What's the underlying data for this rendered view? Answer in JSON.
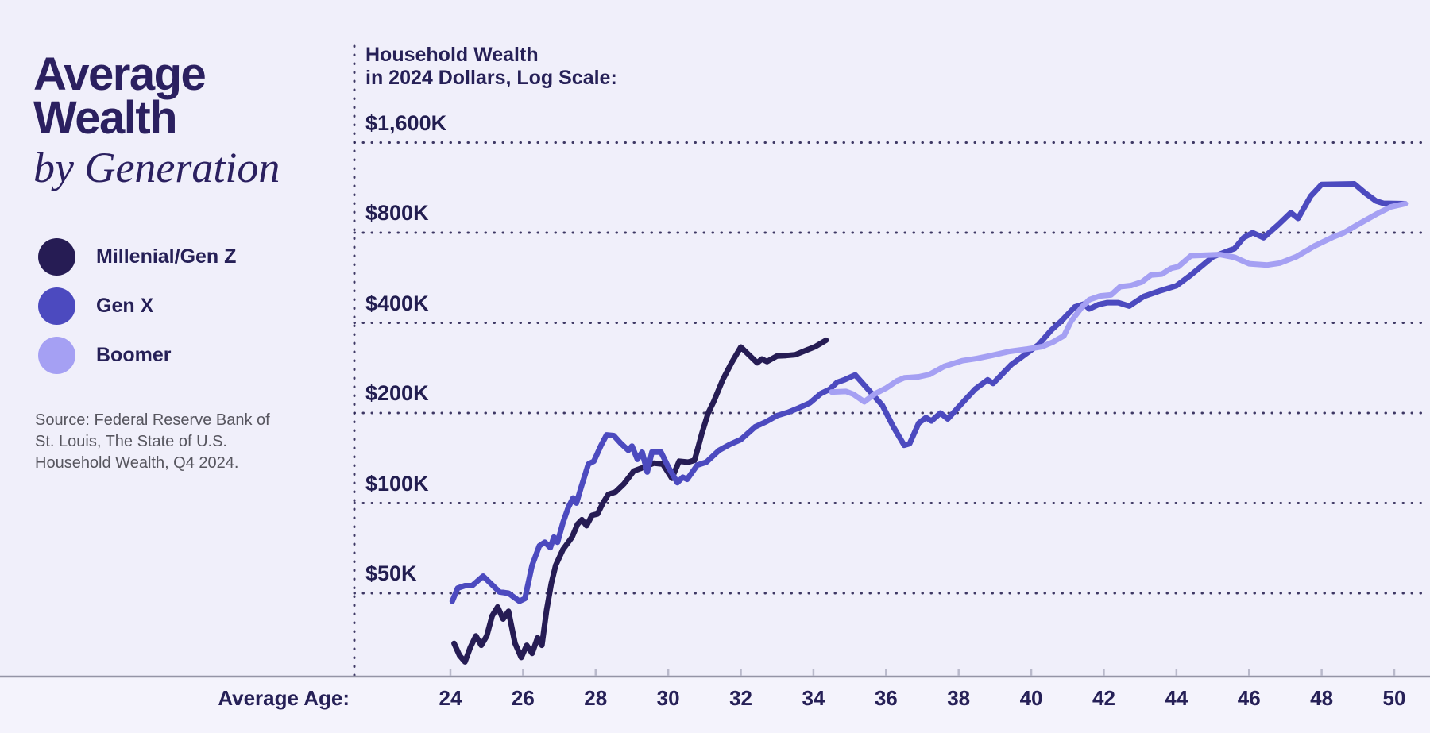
{
  "title": {
    "line1": "Average",
    "line2": "Wealth",
    "line3": "by Generation"
  },
  "legend": [
    {
      "label": "Millenial/Gen Z",
      "color": "#261c54"
    },
    {
      "label": "Gen X",
      "color": "#4c4abf"
    },
    {
      "label": "Boomer",
      "color": "#a5a0f3"
    }
  ],
  "source": {
    "line1": "Source: Federal Reserve Bank of",
    "line2": "St. Louis, The State of U.S.",
    "line3": "Household Wealth, Q4 2024."
  },
  "chart_header": {
    "line1": "Household Wealth",
    "line2": "in 2024 Dollars, Log Scale:"
  },
  "x_axis": {
    "label": "Average Age:",
    "ticks": [
      24,
      26,
      28,
      30,
      32,
      34,
      36,
      38,
      40,
      42,
      44,
      46,
      48,
      50
    ]
  },
  "y_axis": {
    "ticks": [
      {
        "label": "$1,600K",
        "value": 1600
      },
      {
        "label": "$800K",
        "value": 800
      },
      {
        "label": "$400K",
        "value": 400
      },
      {
        "label": "$200K",
        "value": 200
      },
      {
        "label": "$100K",
        "value": 100
      },
      {
        "label": "$50K",
        "value": 50
      }
    ]
  },
  "colors": {
    "background": "#f0effa",
    "text_dark": "#262057",
    "grid_dots": "#2b2554",
    "axis_line": "#9494a6",
    "tick_mark": "#b9b9cb",
    "source_text": "#57565f"
  },
  "chart_data": {
    "type": "line",
    "title": "Average Wealth by Generation",
    "xlabel": "Average Age:",
    "ylabel": "Household Wealth in 2024 Dollars, Log Scale",
    "x_range": [
      24,
      50.5
    ],
    "y_scale": "log",
    "y_tick_values_k": [
      50,
      100,
      200,
      400,
      800,
      1600
    ],
    "grid": "dotted-horizontal",
    "legend_position": "left",
    "units": "thousands of 2024 dollars",
    "series": [
      {
        "name": "Millenial/Gen Z",
        "color": "#261c54",
        "points": [
          [
            24.1,
            34
          ],
          [
            24.25,
            31
          ],
          [
            24.4,
            29.5
          ],
          [
            24.55,
            33
          ],
          [
            24.7,
            36
          ],
          [
            24.85,
            33.5
          ],
          [
            25.0,
            36
          ],
          [
            25.15,
            42
          ],
          [
            25.3,
            45
          ],
          [
            25.45,
            41
          ],
          [
            25.6,
            43.5
          ],
          [
            25.78,
            34
          ],
          [
            25.95,
            30.5
          ],
          [
            26.1,
            33.5
          ],
          [
            26.25,
            31.5
          ],
          [
            26.4,
            35.5
          ],
          [
            26.52,
            33.5
          ],
          [
            26.65,
            44
          ],
          [
            26.78,
            54
          ],
          [
            26.9,
            62
          ],
          [
            27.1,
            70
          ],
          [
            27.35,
            77
          ],
          [
            27.5,
            85
          ],
          [
            27.62,
            88
          ],
          [
            27.75,
            84
          ],
          [
            27.9,
            91
          ],
          [
            28.05,
            92
          ],
          [
            28.2,
            100
          ],
          [
            28.35,
            107
          ],
          [
            28.55,
            109
          ],
          [
            28.78,
            116
          ],
          [
            29.05,
            128
          ],
          [
            29.35,
            132
          ],
          [
            29.6,
            136
          ],
          [
            29.85,
            135
          ],
          [
            30.1,
            121
          ],
          [
            30.3,
            138
          ],
          [
            30.55,
            137
          ],
          [
            30.72,
            139
          ],
          [
            30.82,
            153
          ],
          [
            30.92,
            170
          ],
          [
            31.1,
            200
          ],
          [
            31.25,
            218
          ],
          [
            31.5,
            258
          ],
          [
            31.75,
            295
          ],
          [
            32.0,
            332
          ],
          [
            32.45,
            294
          ],
          [
            32.58,
            303
          ],
          [
            32.72,
            297
          ],
          [
            33.0,
            310
          ],
          [
            33.25,
            311
          ],
          [
            33.5,
            313
          ],
          [
            33.75,
            322
          ],
          [
            34.05,
            333
          ],
          [
            34.35,
            350
          ]
        ]
      },
      {
        "name": "Gen X",
        "color": "#4c4abf",
        "points": [
          [
            24.05,
            47
          ],
          [
            24.2,
            52
          ],
          [
            24.4,
            53
          ],
          [
            24.6,
            53
          ],
          [
            24.9,
            57
          ],
          [
            25.1,
            54
          ],
          [
            25.35,
            50.5
          ],
          [
            25.6,
            50
          ],
          [
            25.9,
            47
          ],
          [
            26.05,
            48
          ],
          [
            26.25,
            62
          ],
          [
            26.45,
            72
          ],
          [
            26.6,
            74
          ],
          [
            26.75,
            71
          ],
          [
            26.85,
            77
          ],
          [
            26.95,
            74
          ],
          [
            27.1,
            86
          ],
          [
            27.25,
            97
          ],
          [
            27.38,
            104
          ],
          [
            27.47,
            100
          ],
          [
            27.6,
            113
          ],
          [
            27.8,
            135
          ],
          [
            27.95,
            138
          ],
          [
            28.15,
            156
          ],
          [
            28.3,
            169
          ],
          [
            28.5,
            168
          ],
          [
            28.7,
            158
          ],
          [
            28.9,
            150
          ],
          [
            29.0,
            155
          ],
          [
            29.15,
            140
          ],
          [
            29.28,
            148
          ],
          [
            29.42,
            127
          ],
          [
            29.55,
            148
          ],
          [
            29.8,
            148
          ],
          [
            30.0,
            132
          ],
          [
            30.25,
            117
          ],
          [
            30.4,
            122
          ],
          [
            30.52,
            120
          ],
          [
            30.8,
            134
          ],
          [
            31.05,
            137
          ],
          [
            31.4,
            150
          ],
          [
            31.7,
            157
          ],
          [
            32.0,
            163
          ],
          [
            32.4,
            180
          ],
          [
            32.7,
            187
          ],
          [
            33.0,
            196
          ],
          [
            33.3,
            201
          ],
          [
            33.6,
            208
          ],
          [
            33.9,
            216
          ],
          [
            34.2,
            232
          ],
          [
            34.45,
            240
          ],
          [
            34.65,
            253
          ],
          [
            34.85,
            258
          ],
          [
            35.15,
            268
          ],
          [
            35.5,
            240
          ],
          [
            35.9,
            212
          ],
          [
            36.2,
            180
          ],
          [
            36.5,
            156
          ],
          [
            36.65,
            158
          ],
          [
            36.9,
            185
          ],
          [
            37.1,
            193
          ],
          [
            37.25,
            188
          ],
          [
            37.5,
            200
          ],
          [
            37.7,
            191
          ],
          [
            38.1,
            216
          ],
          [
            38.45,
            240
          ],
          [
            38.8,
            258
          ],
          [
            38.95,
            251
          ],
          [
            39.45,
            290
          ],
          [
            39.9,
            318
          ],
          [
            40.2,
            338
          ],
          [
            40.55,
            378
          ],
          [
            40.85,
            408
          ],
          [
            41.2,
            452
          ],
          [
            41.45,
            462
          ],
          [
            41.6,
            445
          ],
          [
            41.85,
            460
          ],
          [
            42.1,
            467
          ],
          [
            42.4,
            467
          ],
          [
            42.7,
            455
          ],
          [
            43.1,
            490
          ],
          [
            43.55,
            512
          ],
          [
            44.0,
            532
          ],
          [
            44.4,
            578
          ],
          [
            45.0,
            664
          ],
          [
            45.35,
            690
          ],
          [
            45.6,
            708
          ],
          [
            45.85,
            770
          ],
          [
            46.1,
            800
          ],
          [
            46.4,
            770
          ],
          [
            46.8,
            850
          ],
          [
            47.15,
            933
          ],
          [
            47.35,
            893
          ],
          [
            47.7,
            1060
          ],
          [
            48.0,
            1160
          ],
          [
            48.9,
            1165
          ],
          [
            49.2,
            1085
          ],
          [
            49.5,
            1020
          ],
          [
            49.7,
            1003
          ],
          [
            50.3,
            1000
          ]
        ]
      },
      {
        "name": "Boomer",
        "color": "#a5a0f3",
        "points": [
          [
            34.5,
            235
          ],
          [
            34.9,
            236
          ],
          [
            35.1,
            231
          ],
          [
            35.4,
            218
          ],
          [
            35.7,
            232
          ],
          [
            36.0,
            242
          ],
          [
            36.3,
            256
          ],
          [
            36.5,
            262
          ],
          [
            36.9,
            264
          ],
          [
            37.2,
            269
          ],
          [
            37.6,
            286
          ],
          [
            38.1,
            299
          ],
          [
            38.5,
            304
          ],
          [
            38.9,
            311
          ],
          [
            39.4,
            321
          ],
          [
            39.9,
            327
          ],
          [
            40.3,
            333
          ],
          [
            40.6,
            345
          ],
          [
            40.9,
            362
          ],
          [
            41.1,
            405
          ],
          [
            41.4,
            452
          ],
          [
            41.6,
            478
          ],
          [
            41.9,
            492
          ],
          [
            42.2,
            496
          ],
          [
            42.45,
            528
          ],
          [
            42.75,
            533
          ],
          [
            43.05,
            548
          ],
          [
            43.3,
            578
          ],
          [
            43.6,
            582
          ],
          [
            43.85,
            608
          ],
          [
            44.05,
            616
          ],
          [
            44.4,
            670
          ],
          [
            45.2,
            676
          ],
          [
            45.6,
            662
          ],
          [
            46.0,
            630
          ],
          [
            46.5,
            624
          ],
          [
            46.85,
            633
          ],
          [
            47.3,
            665
          ],
          [
            47.8,
            722
          ],
          [
            48.3,
            772
          ],
          [
            48.6,
            798
          ],
          [
            49.0,
            852
          ],
          [
            49.5,
            922
          ],
          [
            49.9,
            975
          ],
          [
            50.3,
            1000
          ]
        ]
      }
    ]
  }
}
